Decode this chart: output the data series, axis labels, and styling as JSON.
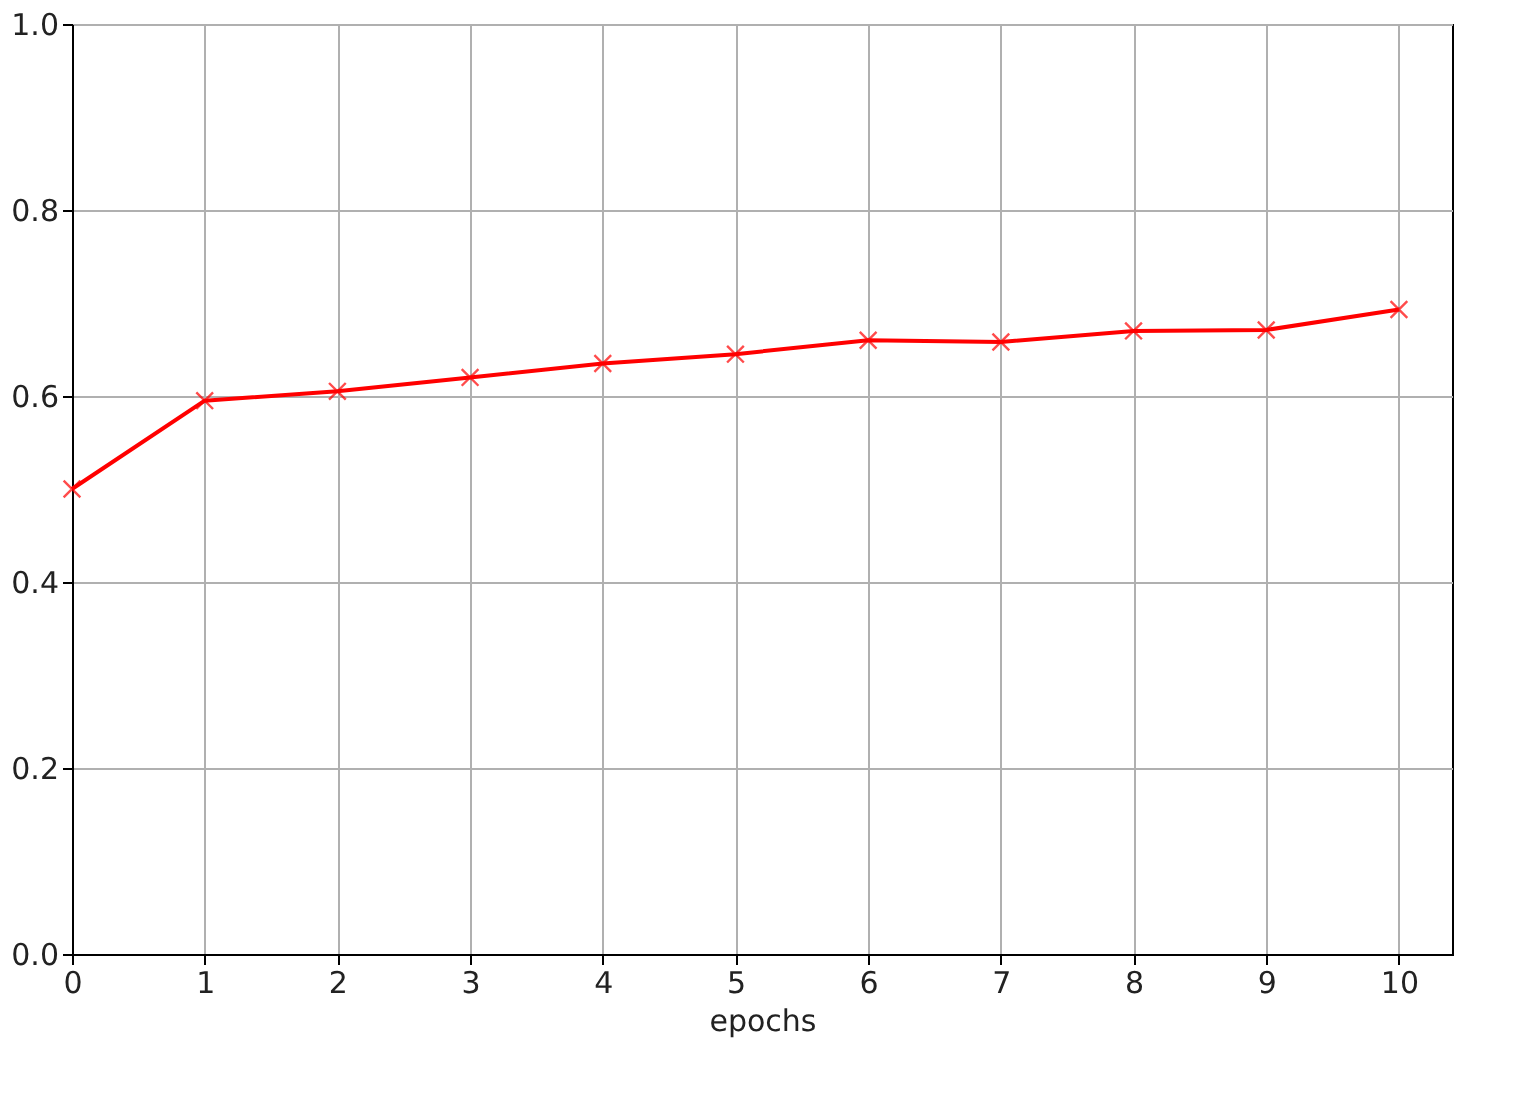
{
  "chart_data": {
    "type": "line",
    "xlabel": "epochs",
    "x": [
      0,
      1,
      2,
      3,
      4,
      5,
      6,
      7,
      8,
      9,
      10
    ],
    "series": [
      {
        "color": "#ff0000",
        "values": [
          0.5,
          0.595,
          0.605,
          0.62,
          0.635,
          0.645,
          0.66,
          0.658,
          0.67,
          0.671,
          0.693
        ]
      }
    ],
    "xlim": [
      0,
      10.4
    ],
    "xticks": [
      0,
      1,
      2,
      3,
      4,
      5,
      6,
      7,
      8,
      9,
      10
    ],
    "ylim": [
      0,
      1
    ],
    "yticks": [
      {
        "value": 0,
        "label": "0.0"
      },
      0.2,
      0.4,
      0.6,
      0.8,
      {
        "value": 1,
        "label": "1.0"
      }
    ],
    "grid": true,
    "marker": "cross",
    "line_style": "solid"
  }
}
